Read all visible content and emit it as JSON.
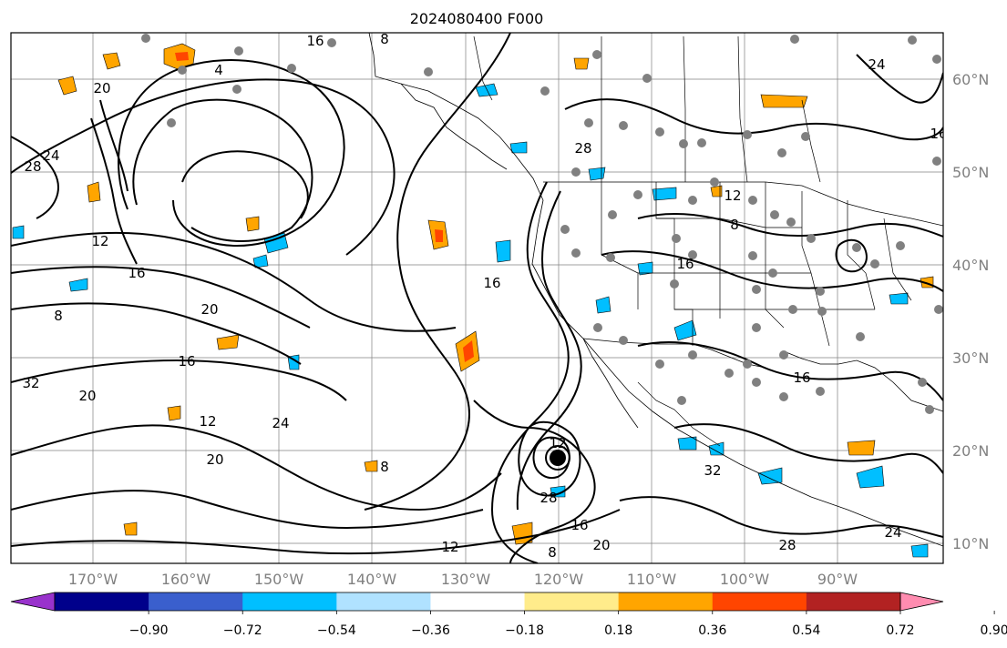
{
  "title": "2024080400 F000",
  "map": {
    "longitude_labels": [
      "170°W",
      "160°W",
      "150°W",
      "140°W",
      "130°W",
      "120°W",
      "110°W",
      "100°W",
      "90°W"
    ],
    "latitude_labels": [
      "60°N",
      "50°N",
      "40°N",
      "30°N",
      "20°N",
      "10°N"
    ],
    "contour_labels": [
      "16",
      "8",
      "4",
      "20",
      "24",
      "16",
      "8",
      "20",
      "16",
      "12",
      "28",
      "24",
      "20",
      "8",
      "12",
      "16",
      "12",
      "8",
      "20",
      "28",
      "32",
      "20",
      "16",
      "12",
      "16",
      "24",
      "16",
      "8",
      "28",
      "32",
      "16",
      "12",
      "28",
      "24"
    ],
    "colors": {
      "coastline": "#000000",
      "gridline": "#808080",
      "contour": "#000000",
      "positive_fill": "#ffa500",
      "negative_fill": "#00bfff",
      "station_marker": "#808080"
    }
  },
  "colorbar": {
    "labels": [
      "−0.90",
      "−0.72",
      "−0.54",
      "−0.36",
      "−0.18",
      "0.18",
      "0.36",
      "0.54",
      "0.72",
      "0.90"
    ],
    "colors": [
      "#9932cc",
      "#00008b",
      "#3a5fcd",
      "#00bfff",
      "#b0e2ff",
      "#ffffff",
      "#ffec8b",
      "#ffa500",
      "#ff4500",
      "#b22222",
      "#ff8cb0"
    ]
  }
}
